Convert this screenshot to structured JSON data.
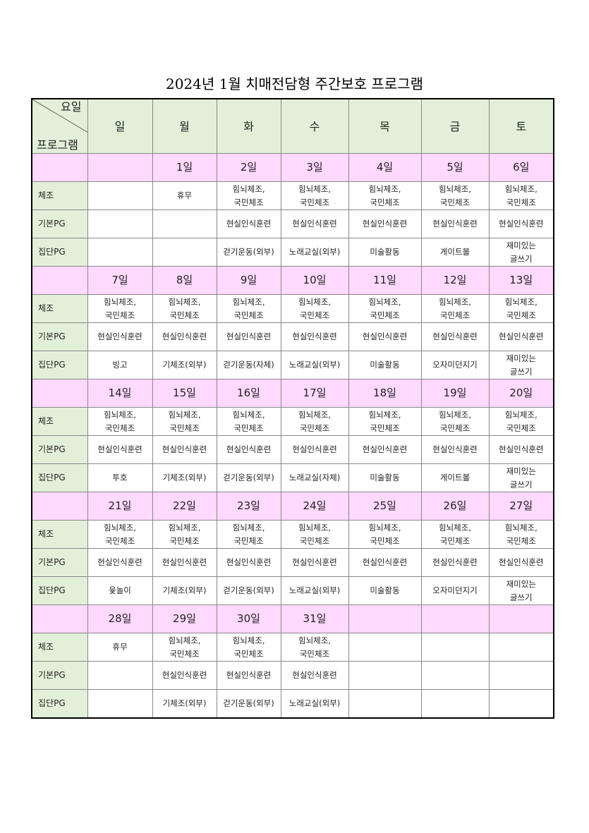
{
  "title": "2024년 1월 치매전담형 주간보호 프로그램",
  "corner": {
    "top": "요일",
    "bottom": "프로그램"
  },
  "days": [
    "일",
    "월",
    "화",
    "수",
    "목",
    "금",
    "토"
  ],
  "row_labels": [
    "체조",
    "기본PG",
    "집단PG"
  ],
  "colors": {
    "header_bg": "#e3f0d9",
    "date_row_bg": "#ffd9ff"
  },
  "weeks": [
    {
      "dates": [
        "",
        "1일",
        "2일",
        "3일",
        "4일",
        "5일",
        "6일"
      ],
      "rows": [
        [
          "",
          "휴무",
          "힘뇌체조,\n국민체조",
          "힘뇌체조,\n국민체조",
          "힘뇌체조,\n국민체조",
          "힘뇌체조,\n국민체조",
          "힘뇌체조,\n국민체조"
        ],
        [
          "",
          "",
          "현실인식훈련",
          "현실인식훈련",
          "현실인식훈련",
          "현실인식훈련",
          "현실인식훈련"
        ],
        [
          "",
          "",
          "걷기운동(외부)",
          "노래교실(외부)",
          "미술활동",
          "게이트볼",
          "재미있는\n글쓰기"
        ]
      ]
    },
    {
      "dates": [
        "7일",
        "8일",
        "9일",
        "10일",
        "11일",
        "12일",
        "13일"
      ],
      "rows": [
        [
          "힘뇌체조,\n국민체조",
          "힘뇌체조,\n국민체조",
          "힘뇌체조,\n국민체조",
          "힘뇌체조,\n국민체조",
          "힘뇌체조,\n국민체조",
          "힘뇌체조,\n국민체조",
          "힘뇌체조,\n국민체조"
        ],
        [
          "현실인식훈련",
          "현실인식훈련",
          "현실인식훈련",
          "현실인식훈련",
          "현실인식훈련",
          "현실인식훈련",
          "현실인식훈련"
        ],
        [
          "빙고",
          "기체조(외부)",
          "걷기운동(자체)",
          "노래교실(외부)",
          "미술활동",
          "오자미던지기",
          "재미있는\n글쓰기"
        ]
      ]
    },
    {
      "dates": [
        "14일",
        "15일",
        "16일",
        "17일",
        "18일",
        "19일",
        "20일"
      ],
      "rows": [
        [
          "힘뇌체조,\n국민체조",
          "힘뇌체조,\n국민체조",
          "힘뇌체조,\n국민체조",
          "힘뇌체조,\n국민체조",
          "힘뇌체조,\n국민체조",
          "힘뇌체조,\n국민체조",
          "힘뇌체조,\n국민체조"
        ],
        [
          "현실인식훈련",
          "현실인식훈련",
          "현실인식훈련",
          "현실인식훈련",
          "현실인식훈련",
          "현실인식훈련",
          "현실인식훈련"
        ],
        [
          "투호",
          "기체조(외부)",
          "걷기운동(외부)",
          "노래교실(자체)",
          "미술활동",
          "게이트볼",
          "재미있는\n글쓰기"
        ]
      ]
    },
    {
      "dates": [
        "21일",
        "22일",
        "23일",
        "24일",
        "25일",
        "26일",
        "27일"
      ],
      "rows": [
        [
          "힘뇌체조,\n국민체조",
          "힘뇌체조,\n국민체조",
          "힘뇌체조,\n국민체조",
          "힘뇌체조,\n국민체조",
          "힘뇌체조,\n국민체조",
          "힘뇌체조,\n국민체조",
          "힘뇌체조,\n국민체조"
        ],
        [
          "현실인식훈련",
          "현실인식훈련",
          "현실인식훈련",
          "현실인식훈련",
          "현실인식훈련",
          "현실인식훈련",
          "현실인식훈련"
        ],
        [
          "윷놀이",
          "기체조(외부)",
          "걷기운동(외부)",
          "노래교실(외부)",
          "미술활동",
          "오자미던지기",
          "재미있는\n글쓰기"
        ]
      ]
    },
    {
      "dates": [
        "28일",
        "29일",
        "30일",
        "31일",
        "",
        "",
        ""
      ],
      "rows": [
        [
          "휴무",
          "힘뇌체조,\n국민체조",
          "힘뇌체조,\n국민체조",
          "힘뇌체조,\n국민체조",
          "",
          "",
          ""
        ],
        [
          "",
          "현실인식훈련",
          "현실인식훈련",
          "현실인식훈련",
          "",
          "",
          ""
        ],
        [
          "",
          "기체조(외부)",
          "걷기운동(외부)",
          "노래교실(외부)",
          "",
          "",
          ""
        ]
      ]
    }
  ]
}
